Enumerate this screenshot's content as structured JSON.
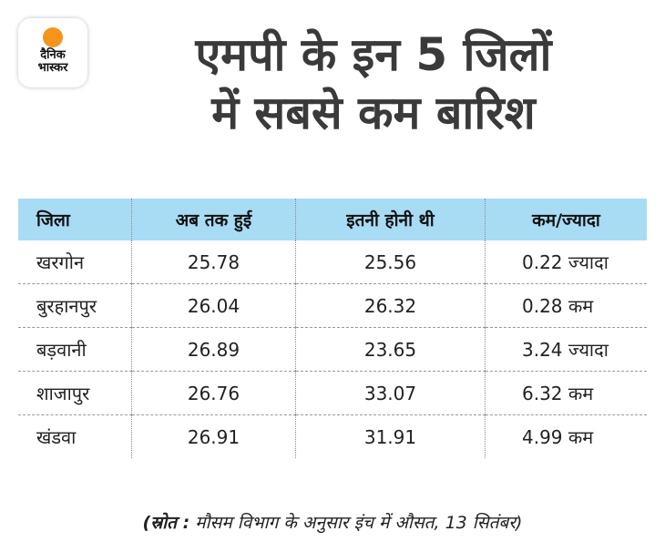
{
  "logo": {
    "line1": "दैनिक",
    "line2": "भास्कर",
    "accent": "#f7941d"
  },
  "title": {
    "line1": "एमपी के इन 5 जिलों",
    "line2": "में सबसे कम बारिश"
  },
  "chart_data": {
    "type": "table",
    "header_color": "#a8dcf5",
    "columns": [
      "जिला",
      "अब तक हुई",
      "इतनी होनी थी",
      "कम/ज्यादा"
    ],
    "rows": [
      [
        "खरगोन",
        "25.78",
        "25.56",
        "0.22 ज्यादा"
      ],
      [
        "बुरहानपुर",
        "26.04",
        "26.32",
        "0.28 कम"
      ],
      [
        "बड़वानी",
        "26.89",
        "23.65",
        "3.24 ज्यादा"
      ],
      [
        "शाजापुर",
        "26.76",
        "33.07",
        "6.32 कम"
      ],
      [
        "खंडवा",
        "26.91",
        "31.91",
        "4.99 कम"
      ]
    ]
  },
  "source": {
    "label": "(स्रोत :",
    "text": " मौसम विभाग के अनुसार इंच में औसत, 13 सितंबर)"
  }
}
